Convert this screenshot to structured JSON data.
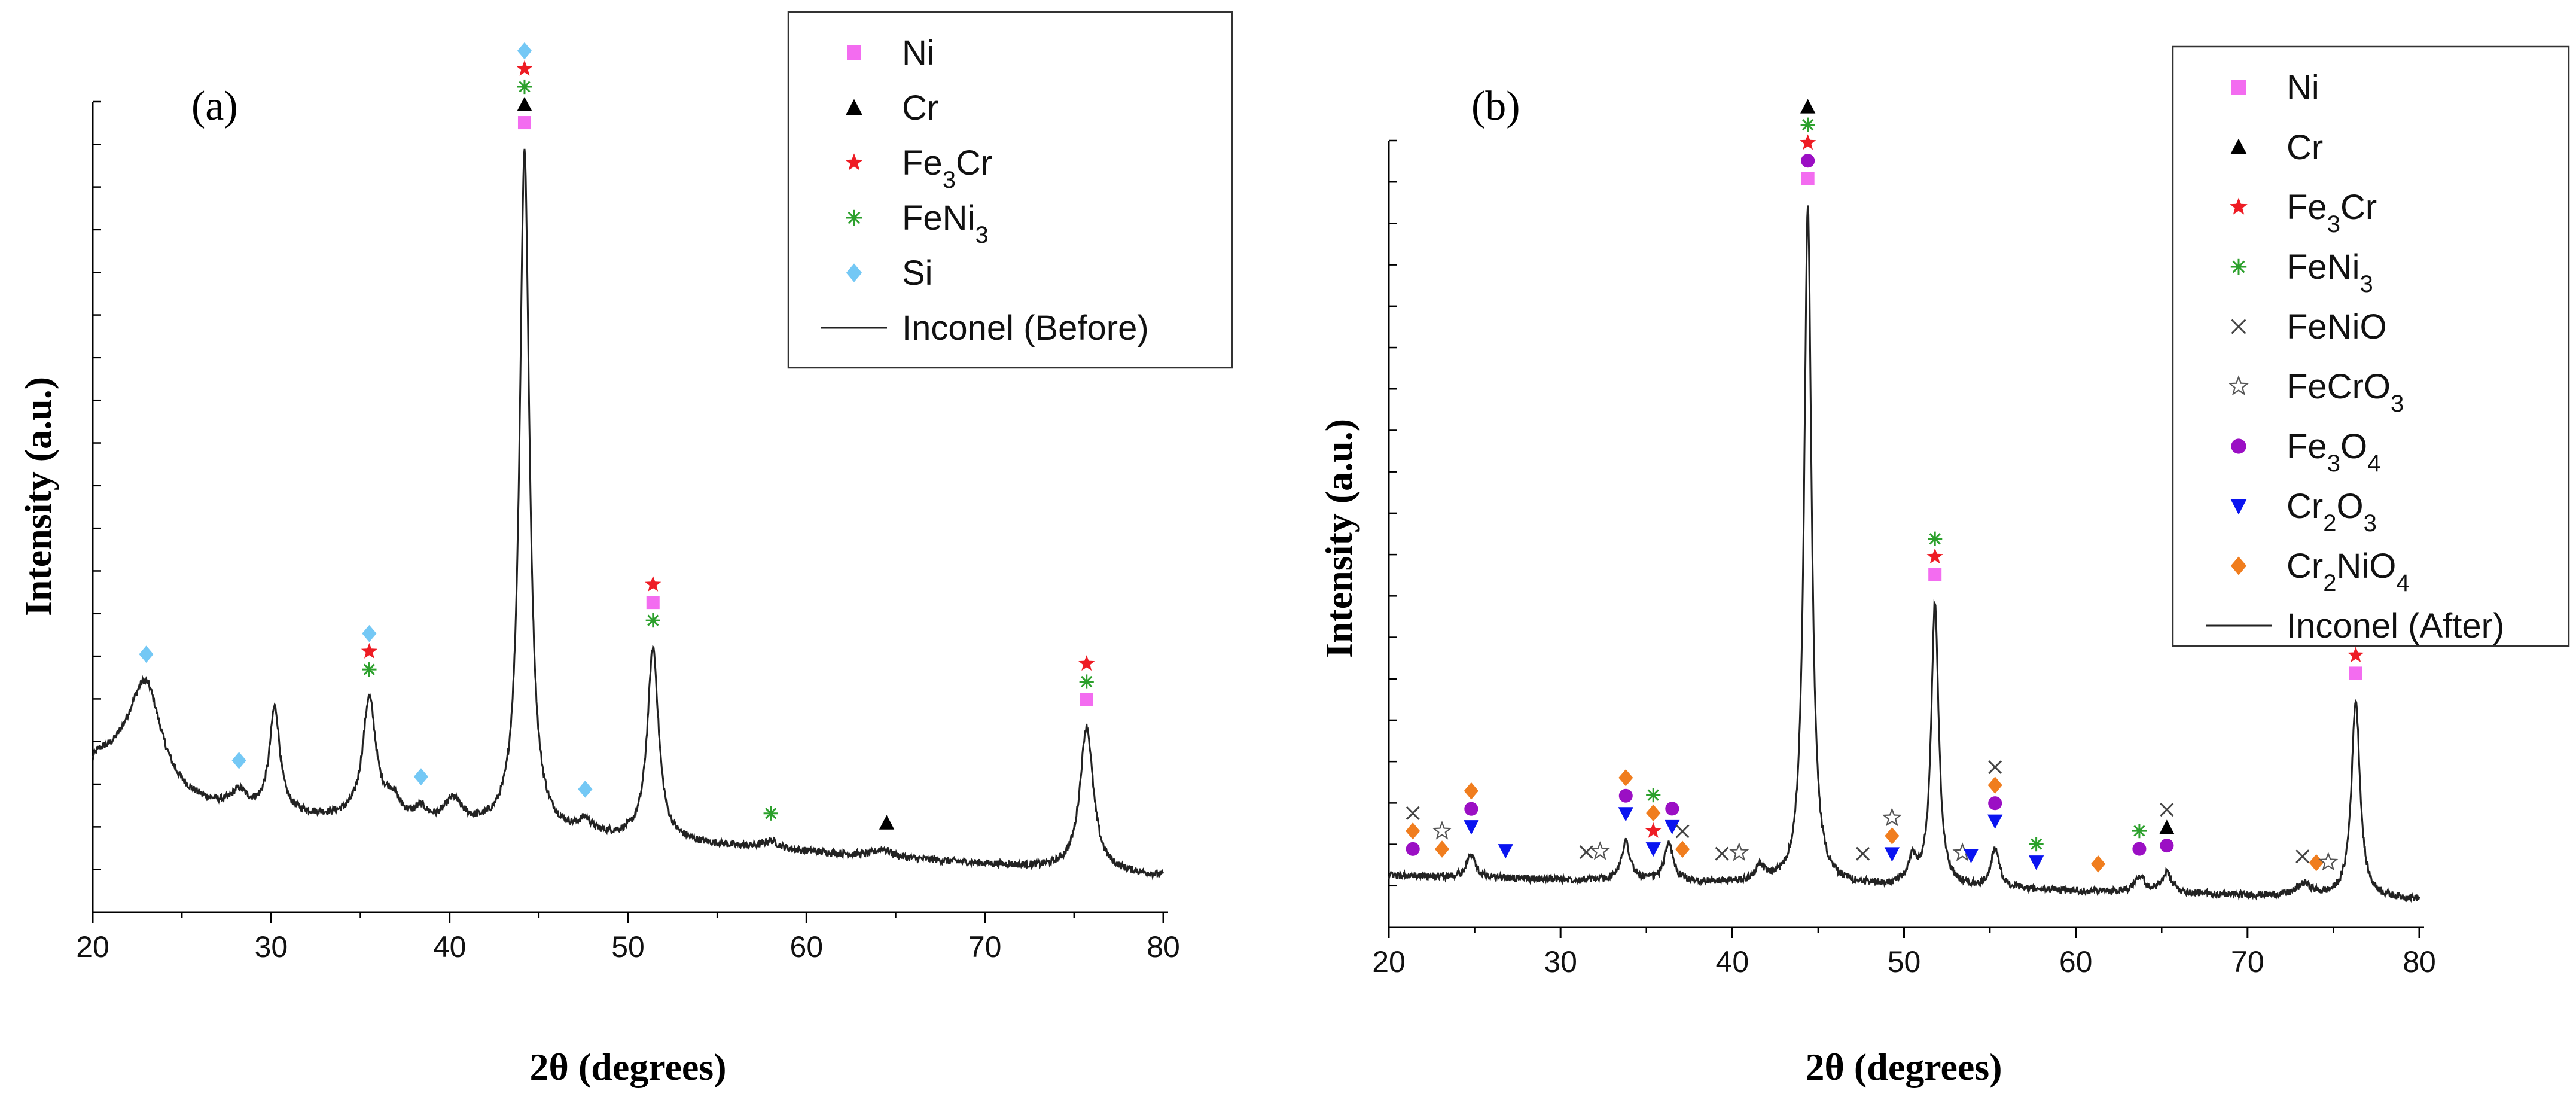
{
  "colors": {
    "Ni": "#f36cf0",
    "Cr": "#000000",
    "Fe3Cr": "#ee1c24",
    "FeNi3": "#2ca02c",
    "Si": "#74c8f5",
    "FeNiO": "#444444",
    "FeCrO3": "#555555",
    "Fe3O4": "#9b0fc4",
    "Cr2O3": "#0a14f0",
    "Cr2NiO4": "#f07d1e",
    "line": "#222222"
  },
  "chart_data": [
    {
      "type": "line",
      "panel": "(a)",
      "xlabel": "2θ (degrees)",
      "ylabel": "Intensity (a.u.)",
      "xlim": [
        20,
        80
      ],
      "ylim": [
        0,
        100
      ],
      "xticks": [
        "20",
        "30",
        "40",
        "50",
        "60",
        "70",
        "80"
      ],
      "legend": {
        "position": "top-right",
        "entries": [
          {
            "key": "Ni",
            "html": "Ni",
            "symbol": "square"
          },
          {
            "key": "Cr",
            "html": "Cr",
            "symbol": "triangle-up"
          },
          {
            "key": "Fe3Cr",
            "html": "Fe<tspan baseline-shift='sub' font-size='40'>3</tspan>Cr",
            "symbol": "star"
          },
          {
            "key": "FeNi3",
            "html": "FeNi<tspan baseline-shift='sub' font-size='40'>3</tspan>",
            "symbol": "asterisk"
          },
          {
            "key": "Si",
            "html": "Si",
            "symbol": "diamond"
          },
          {
            "key": "line",
            "html": "Inconel (Before)",
            "symbol": "line"
          }
        ]
      },
      "background": {
        "start": 12,
        "end": 3
      },
      "peaks": [
        {
          "x": 20.3,
          "h": 3,
          "w": 0.8
        },
        {
          "x": 21.8,
          "h": 4,
          "w": 1.5
        },
        {
          "x": 23.0,
          "h": 13,
          "w": 1.1
        },
        {
          "x": 28.2,
          "h": 2,
          "w": 0.5
        },
        {
          "x": 30.2,
          "h": 13,
          "w": 0.35
        },
        {
          "x": 35.5,
          "h": 15,
          "w": 0.45
        },
        {
          "x": 36.8,
          "h": 2.5,
          "w": 0.5
        },
        {
          "x": 38.4,
          "h": 1.5,
          "w": 0.4
        },
        {
          "x": 40.2,
          "h": 3,
          "w": 0.6
        },
        {
          "x": 44.2,
          "h": 85,
          "w": 0.33
        },
        {
          "x": 47.6,
          "h": 1.5,
          "w": 0.4
        },
        {
          "x": 51.4,
          "h": 24,
          "w": 0.38
        },
        {
          "x": 58.0,
          "h": 1,
          "w": 0.5
        },
        {
          "x": 64.3,
          "h": 1,
          "w": 0.5
        },
        {
          "x": 75.7,
          "h": 18,
          "w": 0.45
        }
      ],
      "markers": [
        {
          "x": 23.0,
          "phases": [
            "Si"
          ]
        },
        {
          "x": 28.2,
          "phases": [
            "Si"
          ]
        },
        {
          "x": 35.5,
          "phases": [
            "FeNi3",
            "Fe3Cr",
            "Si"
          ]
        },
        {
          "x": 38.4,
          "phases": [
            "Si"
          ]
        },
        {
          "x": 44.2,
          "phases": [
            "Ni",
            "Cr",
            "FeNi3",
            "Fe3Cr",
            "Si"
          ]
        },
        {
          "x": 47.6,
          "phases": [
            "Si"
          ]
        },
        {
          "x": 51.4,
          "phases": [
            "FeNi3",
            "Ni",
            "Fe3Cr"
          ]
        },
        {
          "x": 58.0,
          "phases": [
            "FeNi3"
          ]
        },
        {
          "x": 64.5,
          "phases": [
            "Cr"
          ]
        },
        {
          "x": 75.7,
          "phases": [
            "Ni",
            "FeNi3",
            "Fe3Cr"
          ]
        }
      ]
    },
    {
      "type": "line",
      "panel": "(b)",
      "xlabel": "2θ (degrees)",
      "ylabel": "Intensity (a.u.)",
      "xlim": [
        20,
        80
      ],
      "ylim": [
        0,
        100
      ],
      "xticks": [
        "20",
        "30",
        "40",
        "50",
        "60",
        "70",
        "80"
      ],
      "legend": {
        "position": "top-right",
        "entries": [
          {
            "key": "Ni",
            "html": "Ni",
            "symbol": "square"
          },
          {
            "key": "Cr",
            "html": "Cr",
            "symbol": "triangle-up"
          },
          {
            "key": "Fe3Cr",
            "html": "Fe<tspan baseline-shift='sub' font-size='40'>3</tspan>Cr",
            "symbol": "star"
          },
          {
            "key": "FeNi3",
            "html": "FeNi<tspan baseline-shift='sub' font-size='40'>3</tspan>",
            "symbol": "asterisk"
          },
          {
            "key": "FeNiO",
            "html": "FeNiO",
            "symbol": "x"
          },
          {
            "key": "FeCrO3",
            "html": "FeCrO<tspan baseline-shift='sub' font-size='40'>3</tspan>",
            "symbol": "open-star"
          },
          {
            "key": "Fe3O4",
            "html": "Fe<tspan baseline-shift='sub' font-size='40'>3</tspan>O<tspan baseline-shift='sub' font-size='40'>4</tspan>",
            "symbol": "circle"
          },
          {
            "key": "Cr2O3",
            "html": "Cr<tspan baseline-shift='sub' font-size='40'>2</tspan>O<tspan baseline-shift='sub' font-size='40'>3</tspan>",
            "symbol": "triangle-down"
          },
          {
            "key": "Cr2NiO4",
            "html": "Cr<tspan baseline-shift='sub' font-size='40'>2</tspan>NiO<tspan baseline-shift='sub' font-size='40'>4</tspan>",
            "symbol": "diamond"
          },
          {
            "key": "line",
            "html": "Inconel (After)",
            "symbol": "line"
          }
        ]
      },
      "background": {
        "start": 5,
        "end": 2
      },
      "peaks": [
        {
          "x": 24.8,
          "h": 3,
          "w": 0.3
        },
        {
          "x": 33.8,
          "h": 5,
          "w": 0.3
        },
        {
          "x": 36.3,
          "h": 5,
          "w": 0.3
        },
        {
          "x": 41.6,
          "h": 2,
          "w": 0.3
        },
        {
          "x": 44.4,
          "h": 86,
          "w": 0.26
        },
        {
          "x": 50.5,
          "h": 3,
          "w": 0.3
        },
        {
          "x": 51.8,
          "h": 36,
          "w": 0.26
        },
        {
          "x": 55.3,
          "h": 5,
          "w": 0.3
        },
        {
          "x": 63.7,
          "h": 2,
          "w": 0.4
        },
        {
          "x": 65.3,
          "h": 2.5,
          "w": 0.35
        },
        {
          "x": 73.3,
          "h": 1.5,
          "w": 0.5
        },
        {
          "x": 76.3,
          "h": 25,
          "w": 0.3
        }
      ],
      "markers": [
        {
          "x": 21.4,
          "phases": [
            "Fe3O4",
            "Cr2NiO4",
            "FeNiO"
          ]
        },
        {
          "x": 23.1,
          "phases": [
            "Cr2NiO4",
            "FeCrO3"
          ]
        },
        {
          "x": 24.8,
          "phases": [
            "Cr2O3",
            "Fe3O4",
            "Cr2NiO4"
          ]
        },
        {
          "x": 26.8,
          "phases": [
            "Cr2O3"
          ]
        },
        {
          "x": 31.5,
          "phases": [
            "FeNiO"
          ]
        },
        {
          "x": 32.3,
          "phases": [
            "FeCrO3"
          ]
        },
        {
          "x": 33.8,
          "phases": [
            "Cr2O3",
            "Fe3O4",
            "Cr2NiO4"
          ]
        },
        {
          "x": 35.4,
          "phases": [
            "Cr2O3",
            "Fe3Cr",
            "Cr2NiO4",
            "FeNi3"
          ]
        },
        {
          "x": 36.5,
          "phases": [
            "Cr2O3",
            "Fe3O4"
          ]
        },
        {
          "x": 37.1,
          "phases": [
            "Cr2NiO4",
            "FeNiO"
          ]
        },
        {
          "x": 39.4,
          "phases": [
            "FeNiO"
          ]
        },
        {
          "x": 40.4,
          "phases": [
            "FeCrO3"
          ]
        },
        {
          "x": 44.4,
          "phases": [
            "Ni",
            "Fe3O4",
            "Fe3Cr",
            "FeNi3",
            "Cr"
          ]
        },
        {
          "x": 47.6,
          "phases": [
            "FeNiO"
          ]
        },
        {
          "x": 49.3,
          "phases": [
            "Cr2O3",
            "Cr2NiO4",
            "FeCrO3"
          ]
        },
        {
          "x": 51.8,
          "phases": [
            "Ni",
            "Fe3Cr",
            "FeNi3"
          ]
        },
        {
          "x": 53.4,
          "phases": [
            "FeCrO3"
          ]
        },
        {
          "x": 53.9,
          "phases": [
            "Cr2O3"
          ]
        },
        {
          "x": 55.3,
          "phases": [
            "Cr2O3",
            "Fe3O4",
            "Cr2NiO4",
            "FeNiO"
          ]
        },
        {
          "x": 57.7,
          "phases": [
            "Cr2O3",
            "FeNi3"
          ]
        },
        {
          "x": 61.3,
          "phases": [
            "Cr2NiO4"
          ]
        },
        {
          "x": 63.7,
          "phases": [
            "Fe3O4",
            "FeNi3"
          ]
        },
        {
          "x": 65.3,
          "phases": [
            "Fe3O4",
            "Cr",
            "FeNiO"
          ]
        },
        {
          "x": 73.2,
          "phases": [
            "FeNiO"
          ]
        },
        {
          "x": 74.0,
          "phases": [
            "Cr2NiO4"
          ]
        },
        {
          "x": 74.7,
          "phases": [
            "FeCrO3"
          ]
        },
        {
          "x": 76.3,
          "phases": [
            "Ni",
            "Fe3Cr",
            "FeNi3"
          ]
        }
      ]
    }
  ]
}
